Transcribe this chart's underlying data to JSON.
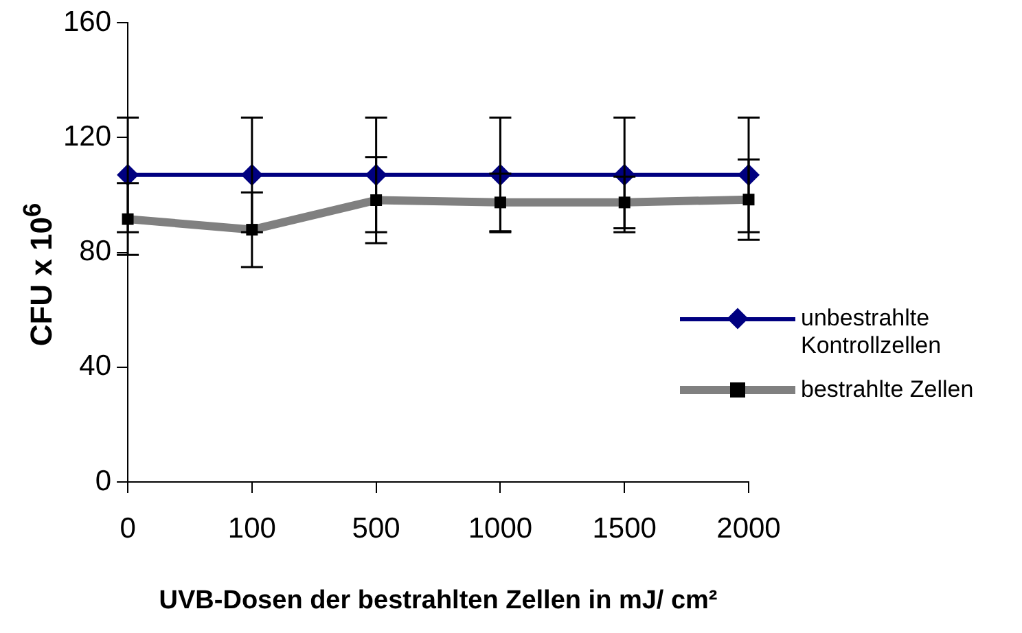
{
  "chart_data": {
    "type": "line",
    "xlabel": "UVB-Dosen der bestrahlten Zellen in mJ/ cm²",
    "ylabel": "CFU x 10$^{6}$",
    "categories": [
      "0",
      "100",
      "500",
      "1000",
      "1500",
      "2000"
    ],
    "series": [
      {
        "name": "unbestrahlte Kontrollzellen",
        "color": "#000080",
        "marker": "diamond",
        "values": [
          107,
          107,
          107,
          107,
          107,
          107
        ],
        "errors": [
          20,
          20,
          20,
          20,
          20,
          20
        ]
      },
      {
        "name": "bestrahlte Zellen",
        "color": "#808080",
        "marker": "square",
        "values": [
          91.6,
          87.9,
          98.2,
          97.4,
          97.4,
          98.4
        ],
        "errors": [
          12.5,
          13,
          15,
          10,
          9,
          14
        ]
      }
    ],
    "ylim": [
      0,
      160
    ],
    "yticks": [
      0,
      40,
      80,
      120,
      160
    ],
    "grid": false,
    "legend": "right"
  }
}
